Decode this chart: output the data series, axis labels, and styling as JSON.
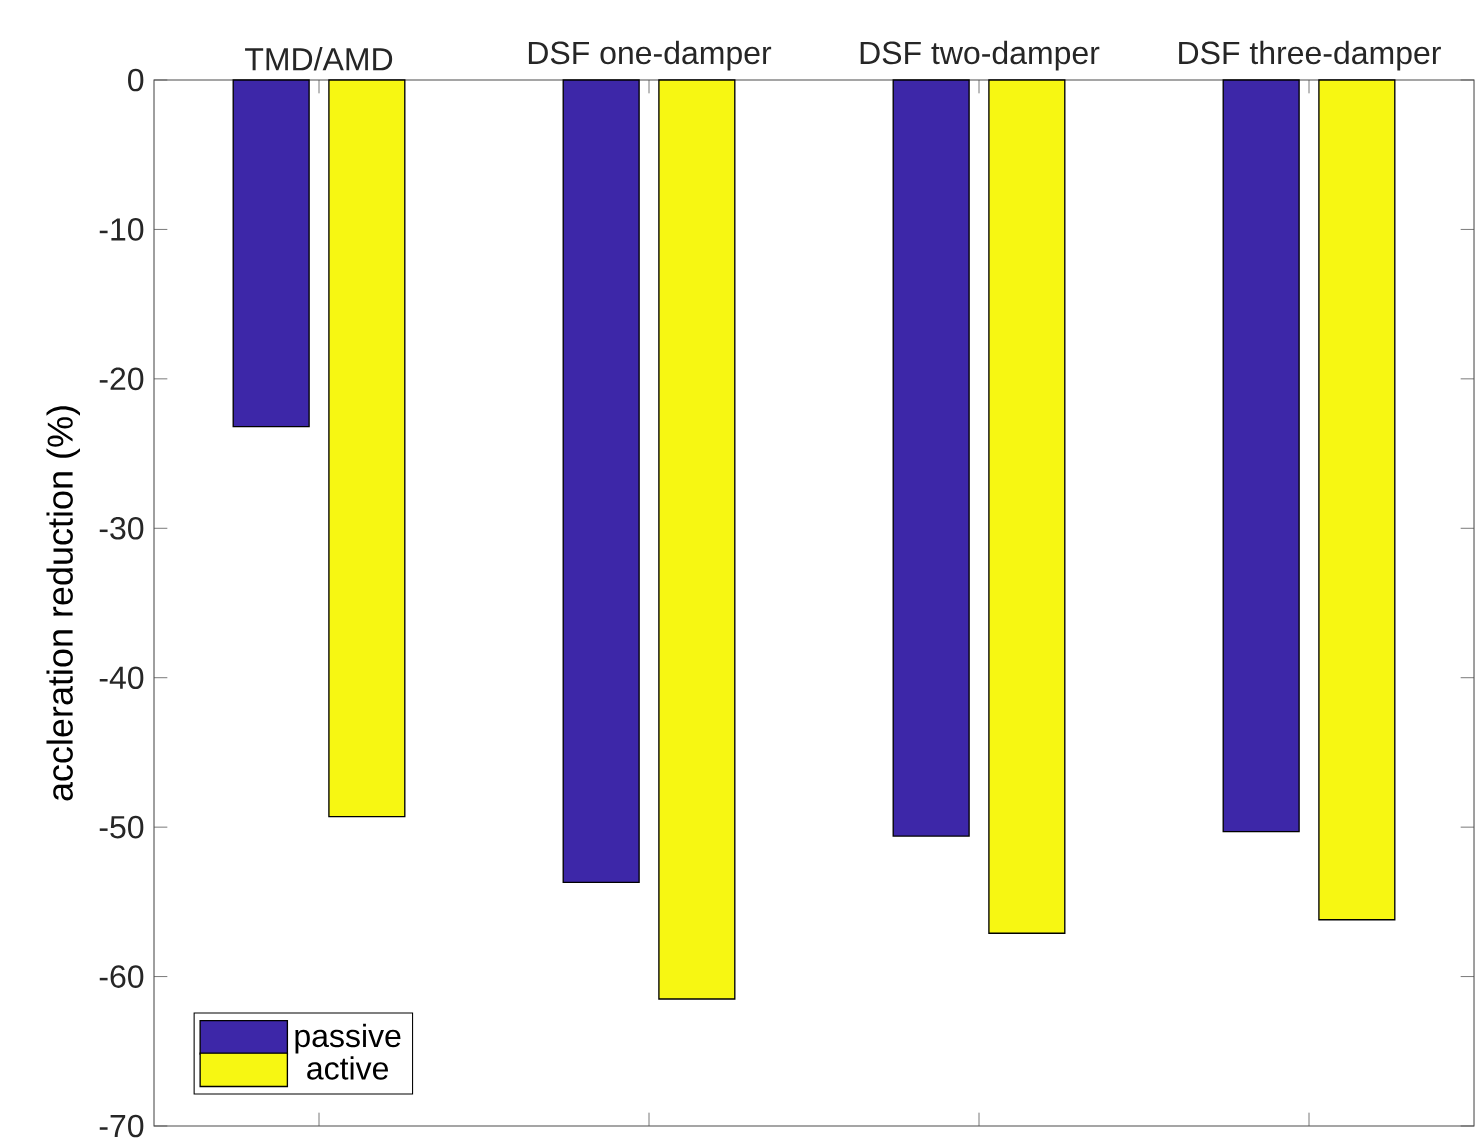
{
  "chart_data": {
    "type": "bar",
    "ylabel": "accleration reduction (%)",
    "categories": [
      "TMD/AMD",
      "DSF one-damper",
      "DSF two-damper",
      "DSF three-damper"
    ],
    "series": [
      {
        "name": "passive",
        "color": "#3d27a8",
        "values": [
          -23.2,
          -53.7,
          -50.6,
          -50.3
        ]
      },
      {
        "name": "active",
        "color": "#f7f712",
        "values": [
          -49.3,
          -61.5,
          -57.1,
          -56.2
        ]
      }
    ],
    "ylim": [
      -70,
      0
    ],
    "yticks": [
      -70,
      -60,
      -50,
      -40,
      -30,
      -20,
      -10,
      0
    ],
    "legend": "bottom left"
  }
}
